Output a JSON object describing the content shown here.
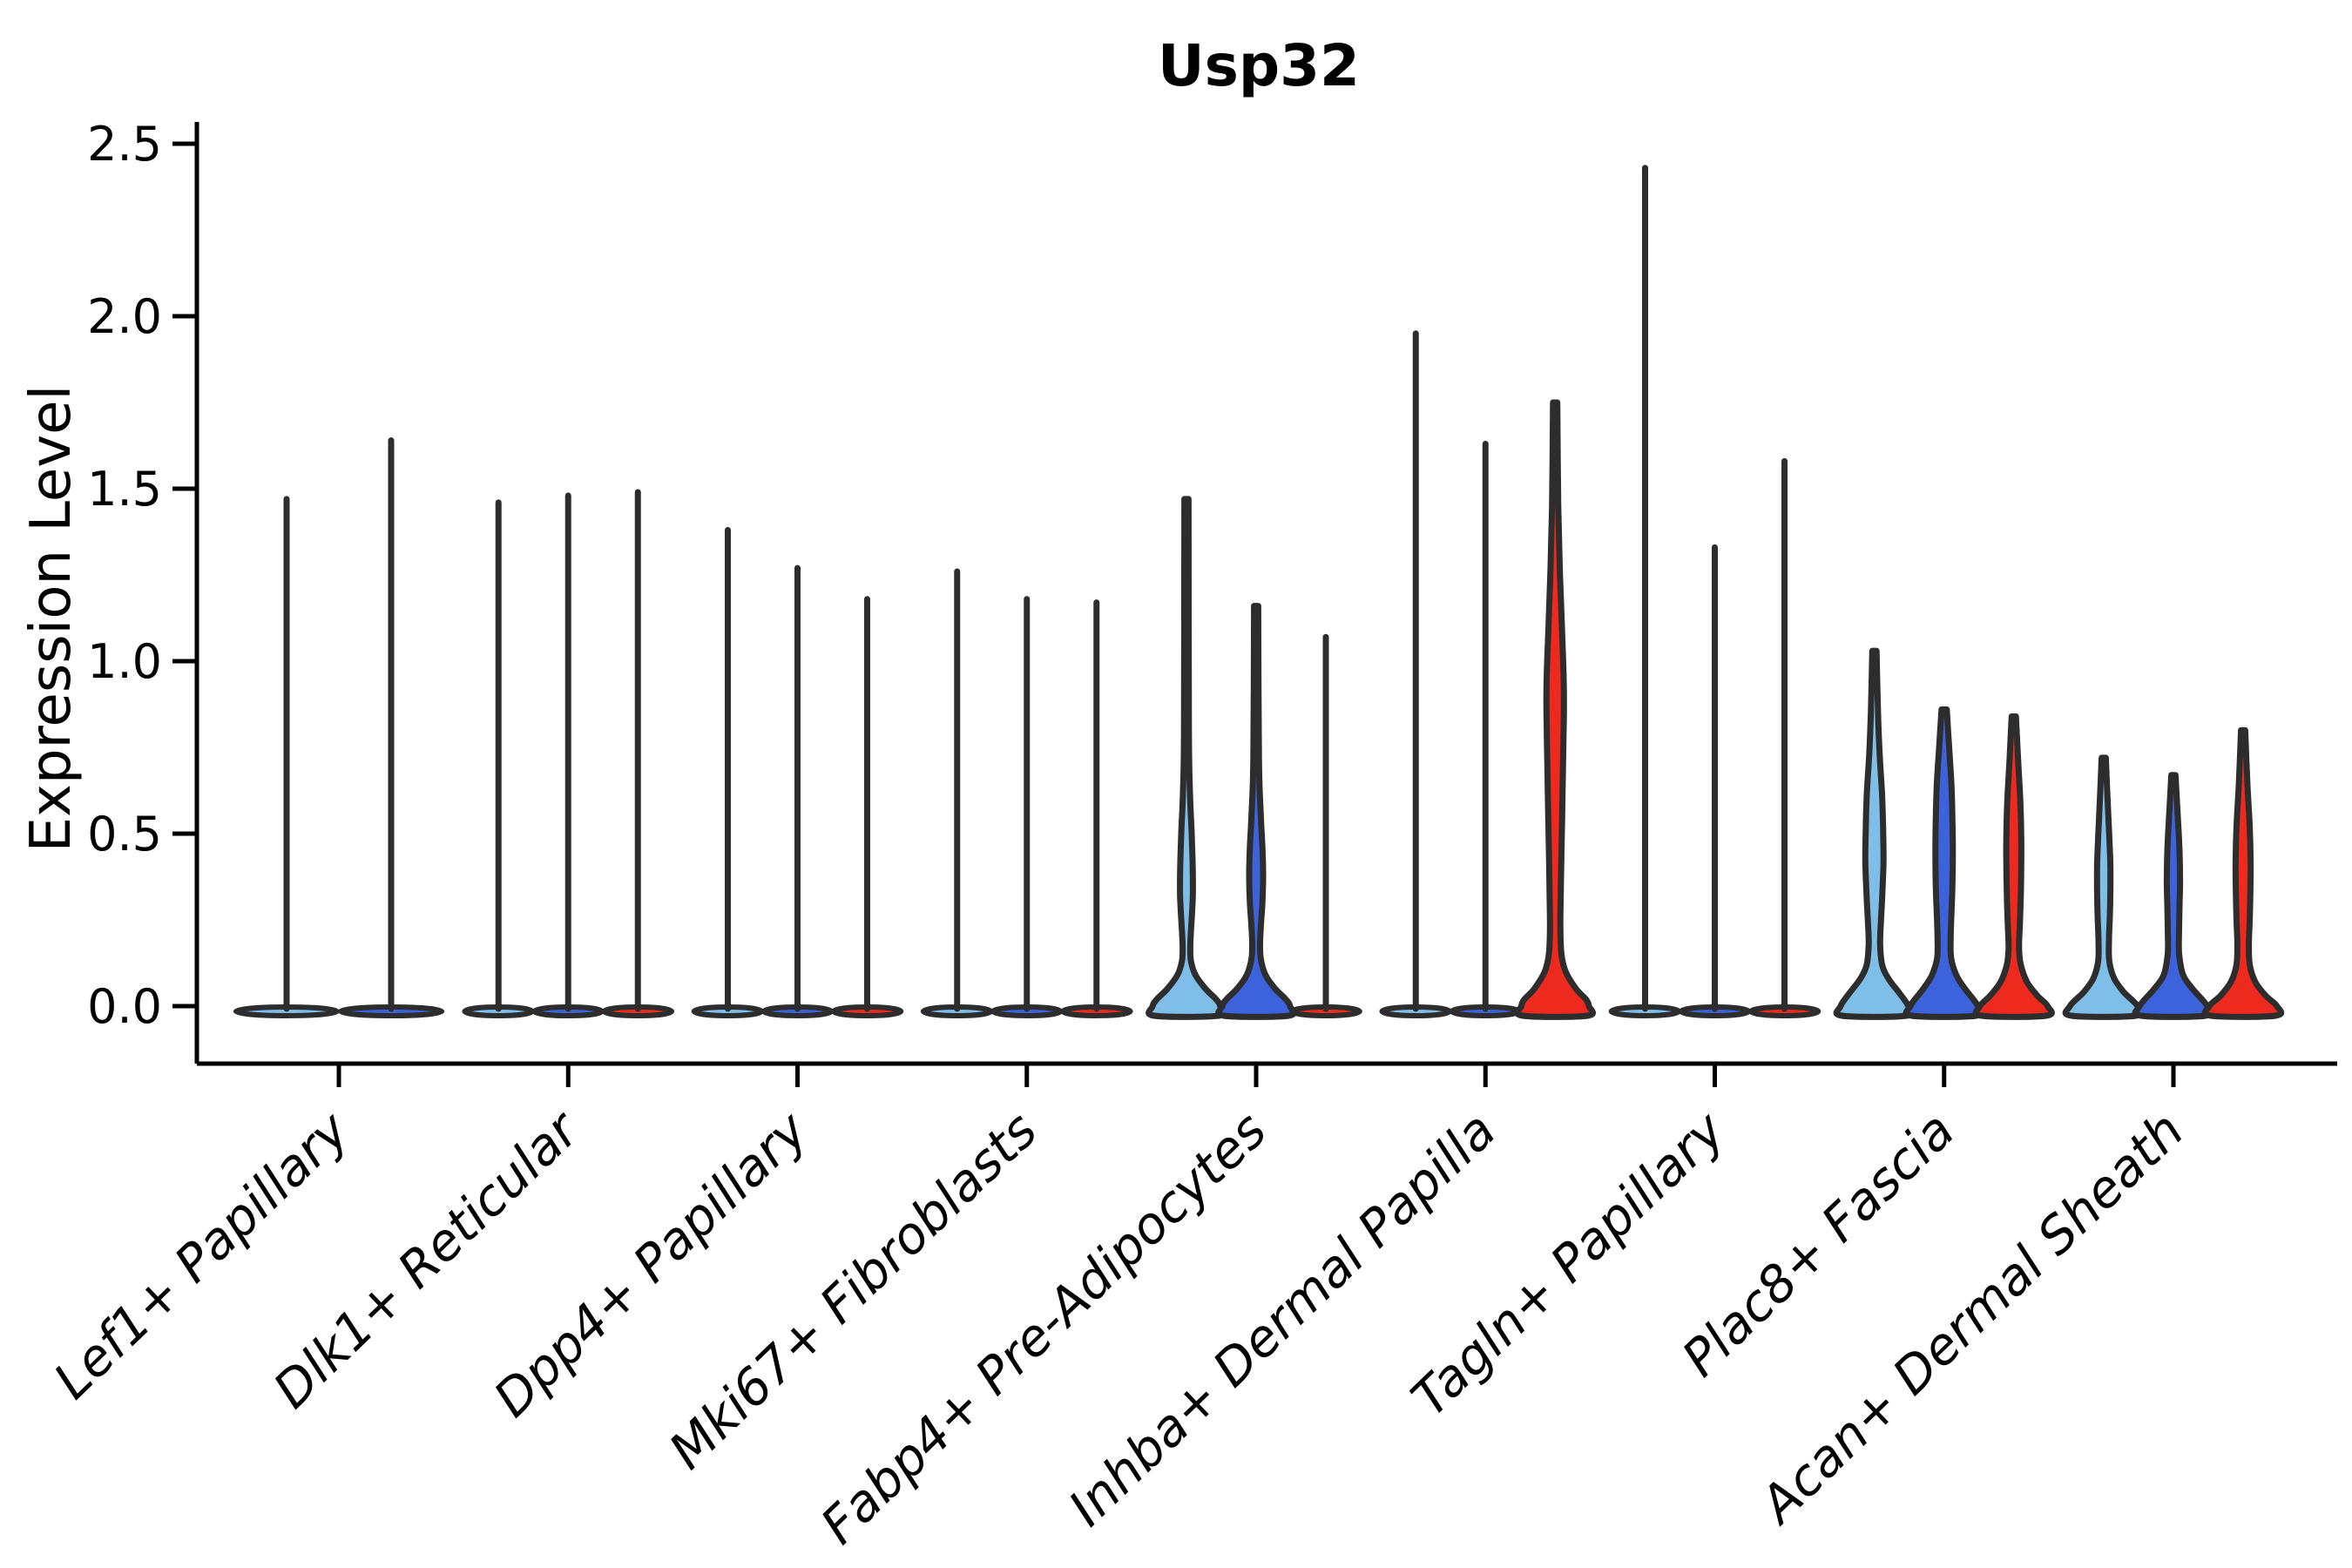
{
  "chart_data": {
    "type": "violin",
    "title": "Usp32",
    "ylabel": "Expression Level",
    "xlabel": "",
    "ylim": [
      -0.05,
      2.55
    ],
    "yticks": [
      "0.0",
      "0.5",
      "1.0",
      "1.5",
      "2.0",
      "2.5"
    ],
    "ytick_values": [
      0.0,
      0.5,
      1.0,
      1.5,
      2.0,
      2.5
    ],
    "x_label_rotation_deg": 44,
    "grid": false,
    "legend": "none",
    "colors": {
      "light-blue": "#7FBEE9",
      "dark-blue": "#3C63DB",
      "red": "#EE2A1E",
      "outline": "#2D2D2D",
      "axis": "#000000"
    },
    "hues": [
      "light-blue",
      "dark-blue",
      "red"
    ],
    "groups": [
      {
        "label": "Lef1+ Papillary",
        "violins": [
          {
            "hue": "light-blue",
            "offset": -60,
            "width_scale": 1.5,
            "max": 1.47,
            "shape": "spike"
          },
          {
            "hue": "dark-blue",
            "offset": 60,
            "width_scale": 1.5,
            "max": 1.64,
            "shape": "spike"
          }
        ]
      },
      {
        "label": "Dlk1+ Reticular",
        "violins": [
          {
            "hue": "light-blue",
            "offset": -80,
            "width_scale": 1,
            "max": 1.46,
            "shape": "spike"
          },
          {
            "hue": "dark-blue",
            "offset": 0,
            "width_scale": 1,
            "max": 1.48,
            "shape": "spike"
          },
          {
            "hue": "red",
            "offset": 80,
            "width_scale": 1,
            "max": 1.49,
            "shape": "spike"
          }
        ]
      },
      {
        "label": "Dpp4+ Papillary",
        "violins": [
          {
            "hue": "light-blue",
            "offset": -80,
            "width_scale": 1,
            "max": 1.38,
            "shape": "spike"
          },
          {
            "hue": "dark-blue",
            "offset": 0,
            "width_scale": 1,
            "max": 1.27,
            "shape": "spike"
          },
          {
            "hue": "red",
            "offset": 80,
            "width_scale": 1,
            "max": 1.18,
            "shape": "spike"
          }
        ]
      },
      {
        "label": "Mki67+ Fibroblasts",
        "violins": [
          {
            "hue": "light-blue",
            "offset": -80,
            "width_scale": 1,
            "max": 1.26,
            "shape": "spike"
          },
          {
            "hue": "dark-blue",
            "offset": 0,
            "width_scale": 1,
            "max": 1.18,
            "shape": "spike"
          },
          {
            "hue": "red",
            "offset": 80,
            "width_scale": 1,
            "max": 1.17,
            "shape": "spike"
          }
        ]
      },
      {
        "label": "Fabp4+ Pre-Adipocytes",
        "violins": [
          {
            "hue": "light-blue",
            "offset": -80,
            "width_scale": 1,
            "max": 1.47,
            "shape": "violin",
            "profile": [
              [
                1.47,
                0.06
              ],
              [
                0.8,
                0.07
              ],
              [
                0.62,
                0.1
              ],
              [
                0.5,
                0.15
              ],
              [
                0.4,
                0.18
              ],
              [
                0.33,
                0.185
              ],
              [
                0.27,
                0.16
              ],
              [
                0.21,
                0.125
              ],
              [
                0.17,
                0.11
              ],
              [
                0.13,
                0.13
              ],
              [
                0.09,
                0.26
              ],
              [
                0.05,
                0.55
              ],
              [
                0.02,
                0.85
              ],
              [
                0,
                0.97
              ]
            ]
          },
          {
            "hue": "dark-blue",
            "offset": 0,
            "width_scale": 1,
            "max": 1.16,
            "shape": "violin",
            "profile": [
              [
                1.16,
                0.06
              ],
              [
                0.72,
                0.08
              ],
              [
                0.56,
                0.13
              ],
              [
                0.46,
                0.18
              ],
              [
                0.38,
                0.2
              ],
              [
                0.3,
                0.18
              ],
              [
                0.24,
                0.14
              ],
              [
                0.19,
                0.115
              ],
              [
                0.14,
                0.13
              ],
              [
                0.09,
                0.27
              ],
              [
                0.05,
                0.55
              ],
              [
                0.02,
                0.85
              ],
              [
                0,
                0.97
              ]
            ]
          },
          {
            "hue": "red",
            "offset": 80,
            "width_scale": 1,
            "max": 1.07,
            "shape": "spike"
          }
        ]
      },
      {
        "label": "Inhba+ Dermal Papilla",
        "violins": [
          {
            "hue": "light-blue",
            "offset": -80,
            "width_scale": 1,
            "max": 1.95,
            "shape": "spike"
          },
          {
            "hue": "dark-blue",
            "offset": 0,
            "width_scale": 1,
            "max": 1.63,
            "shape": "spike"
          },
          {
            "hue": "red",
            "offset": 80,
            "width_scale": 1,
            "max": 1.75,
            "shape": "violin",
            "profile": [
              [
                1.75,
                0.06
              ],
              [
                1.45,
                0.09
              ],
              [
                1.25,
                0.14
              ],
              [
                1.08,
                0.2
              ],
              [
                0.95,
                0.245
              ],
              [
                0.85,
                0.25
              ],
              [
                0.7,
                0.225
              ],
              [
                0.55,
                0.2
              ],
              [
                0.42,
                0.175
              ],
              [
                0.3,
                0.155
              ],
              [
                0.22,
                0.15
              ],
              [
                0.15,
                0.18
              ],
              [
                0.1,
                0.3
              ],
              [
                0.05,
                0.6
              ],
              [
                0.02,
                0.88
              ],
              [
                0,
                0.97
              ]
            ]
          }
        ]
      },
      {
        "label": "Tagln+ Papillary",
        "violins": [
          {
            "hue": "light-blue",
            "offset": -80,
            "width_scale": 1,
            "max": 2.43,
            "shape": "spike"
          },
          {
            "hue": "dark-blue",
            "offset": 0,
            "width_scale": 1,
            "max": 1.33,
            "shape": "spike"
          },
          {
            "hue": "red",
            "offset": 80,
            "width_scale": 1,
            "max": 1.58,
            "shape": "spike"
          }
        ]
      },
      {
        "label": "Plac8+ Fascia",
        "violins": [
          {
            "hue": "light-blue",
            "offset": -80,
            "width_scale": 1,
            "max": 1.03,
            "shape": "violin",
            "profile": [
              [
                1.03,
                0.06
              ],
              [
                0.86,
                0.1
              ],
              [
                0.73,
                0.15
              ],
              [
                0.61,
                0.22
              ],
              [
                0.51,
                0.25
              ],
              [
                0.42,
                0.26
              ],
              [
                0.33,
                0.23
              ],
              [
                0.25,
                0.19
              ],
              [
                0.18,
                0.165
              ],
              [
                0.12,
                0.22
              ],
              [
                0.08,
                0.4
              ],
              [
                0.04,
                0.7
              ],
              [
                0,
                0.97
              ]
            ]
          },
          {
            "hue": "dark-blue",
            "offset": 0,
            "width_scale": 1,
            "max": 0.86,
            "shape": "violin",
            "profile": [
              [
                0.86,
                0.075
              ],
              [
                0.74,
                0.15
              ],
              [
                0.64,
                0.21
              ],
              [
                0.54,
                0.24
              ],
              [
                0.45,
                0.25
              ],
              [
                0.35,
                0.24
              ],
              [
                0.27,
                0.21
              ],
              [
                0.2,
                0.19
              ],
              [
                0.14,
                0.2
              ],
              [
                0.09,
                0.35
              ],
              [
                0.05,
                0.6
              ],
              [
                0,
                0.97
              ]
            ]
          },
          {
            "hue": "red",
            "offset": 80,
            "width_scale": 1,
            "max": 0.84,
            "shape": "violin",
            "profile": [
              [
                0.84,
                0.06
              ],
              [
                0.71,
                0.125
              ],
              [
                0.59,
                0.19
              ],
              [
                0.49,
                0.215
              ],
              [
                0.41,
                0.215
              ],
              [
                0.32,
                0.2
              ],
              [
                0.24,
                0.175
              ],
              [
                0.17,
                0.15
              ],
              [
                0.12,
                0.2
              ],
              [
                0.07,
                0.38
              ],
              [
                0.03,
                0.68
              ],
              [
                0,
                0.97
              ]
            ]
          }
        ]
      },
      {
        "label": "Acan+ Dermal Sheath",
        "violins": [
          {
            "hue": "light-blue",
            "offset": -80,
            "width_scale": 1,
            "max": 0.72,
            "shape": "violin",
            "profile": [
              [
                0.72,
                0.06
              ],
              [
                0.6,
                0.11
              ],
              [
                0.49,
                0.16
              ],
              [
                0.41,
                0.19
              ],
              [
                0.33,
                0.19
              ],
              [
                0.26,
                0.175
              ],
              [
                0.19,
                0.15
              ],
              [
                0.13,
                0.16
              ],
              [
                0.08,
                0.3
              ],
              [
                0.04,
                0.58
              ],
              [
                0,
                0.97
              ]
            ]
          },
          {
            "hue": "dark-blue",
            "offset": 0,
            "width_scale": 1,
            "max": 0.67,
            "shape": "violin",
            "profile": [
              [
                0.67,
                0.06
              ],
              [
                0.55,
                0.125
              ],
              [
                0.45,
                0.175
              ],
              [
                0.36,
                0.19
              ],
              [
                0.29,
                0.175
              ],
              [
                0.21,
                0.16
              ],
              [
                0.15,
                0.165
              ],
              [
                0.09,
                0.28
              ],
              [
                0.05,
                0.55
              ],
              [
                0,
                0.97
              ]
            ]
          },
          {
            "hue": "red",
            "offset": 80,
            "width_scale": 1,
            "max": 0.8,
            "shape": "violin",
            "profile": [
              [
                0.8,
                0.06
              ],
              [
                0.64,
                0.125
              ],
              [
                0.52,
                0.19
              ],
              [
                0.42,
                0.215
              ],
              [
                0.34,
                0.21
              ],
              [
                0.25,
                0.19
              ],
              [
                0.18,
                0.165
              ],
              [
                0.12,
                0.19
              ],
              [
                0.07,
                0.35
              ],
              [
                0.03,
                0.65
              ],
              [
                0,
                0.97
              ]
            ]
          }
        ]
      }
    ]
  }
}
